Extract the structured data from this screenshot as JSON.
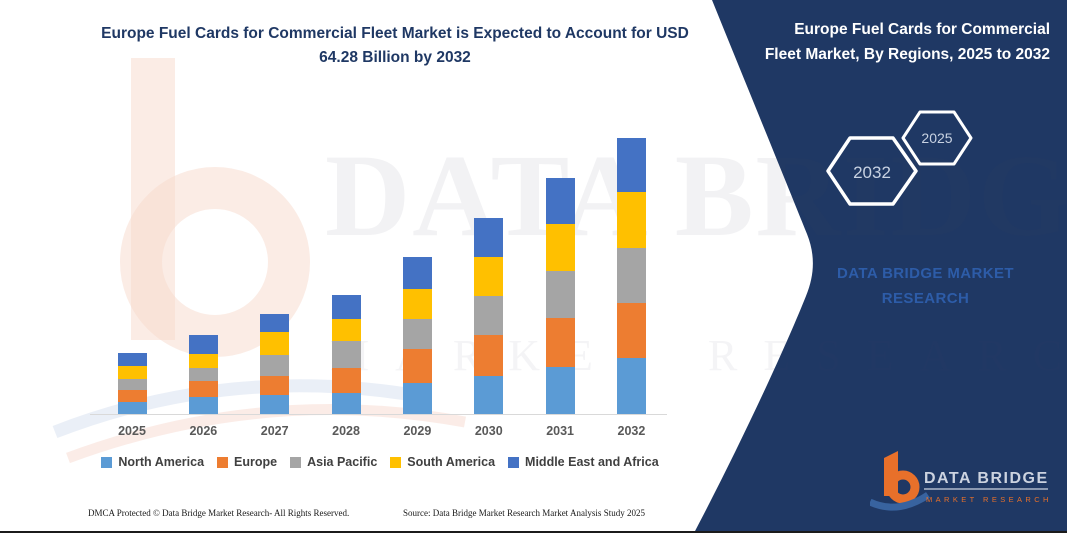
{
  "title": "Europe Fuel Cards for Commercial Fleet Market is Expected to Account for USD 64.28 Billion by 2032",
  "panel": {
    "heading": "Europe Fuel Cards for Commercial Fleet Market, By Regions, 2025 to 2032",
    "hexagon_back_label": "2032",
    "hexagon_front_label": "2025",
    "brand_text": "DATA BRIDGE MARKET RESEARCH",
    "background_color": "#1f3864",
    "brand_text_color": "#2d5ca8"
  },
  "logo": {
    "name": "DATA BRIDGE",
    "subtitle": "MARKET RESEARCH",
    "b_color": "#e8702a",
    "swoosh_color": "#38639f",
    "text_color": "#ccd3e0"
  },
  "watermark": {
    "line1": "DATA BRIDGE",
    "line2": "MARKET RESEARCH"
  },
  "footer": {
    "left": "DMCA Protected © Data Bridge Market Research-  All Rights Reserved.",
    "right": "Source: Data Bridge Market Research  Market Analysis Study 2025"
  },
  "chart_data": {
    "type": "bar",
    "stacked": true,
    "unit": "USD Billion",
    "categories": [
      "2025",
      "2026",
      "2027",
      "2028",
      "2029",
      "2030",
      "2031",
      "2032"
    ],
    "series": [
      {
        "name": "North America",
        "color": "#5B9BD5",
        "values": [
          2.7,
          3.9,
          4.5,
          5.0,
          7.3,
          8.9,
          11.0,
          13.0
        ]
      },
      {
        "name": "Europe",
        "color": "#ED7D31",
        "values": [
          3.0,
          3.7,
          4.4,
          5.7,
          7.8,
          9.5,
          11.3,
          12.9
        ]
      },
      {
        "name": "Asia Pacific",
        "color": "#A5A5A5",
        "values": [
          2.5,
          3.1,
          4.9,
          6.2,
          7.0,
          9.1,
          10.9,
          12.8
        ]
      },
      {
        "name": "South America",
        "color": "#FFC000",
        "values": [
          2.9,
          3.3,
          5.2,
          5.2,
          7.1,
          8.9,
          10.9,
          13.0
        ]
      },
      {
        "name": "Middle East and Africa",
        "color": "#4472C4",
        "values": [
          3.0,
          4.3,
          4.3,
          5.6,
          7.4,
          9.1,
          10.8,
          12.6
        ]
      }
    ],
    "totals_label_2032": "64.28",
    "ylim": [
      0,
      65
    ],
    "grid": false,
    "legend_position": "bottom"
  }
}
